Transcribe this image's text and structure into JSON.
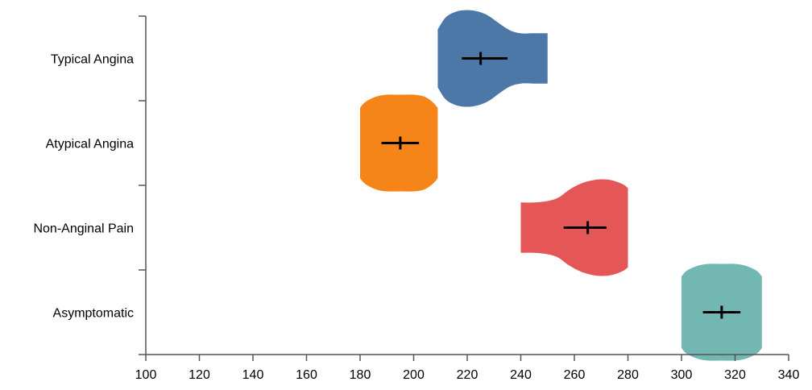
{
  "chart_data": {
    "type": "violin",
    "title": "",
    "xlabel": "",
    "ylabel": "",
    "xlim": [
      100,
      340
    ],
    "xticks": [
      100,
      120,
      140,
      160,
      180,
      200,
      220,
      240,
      260,
      280,
      300,
      320,
      340
    ],
    "grid": false,
    "categories": [
      "Typical Angina",
      "Atypical Angina",
      "Non-Anginal Pain",
      "Asymptomatic"
    ],
    "series": [
      {
        "category": "Typical Angina",
        "color": "#4c78a8",
        "mean": 225,
        "ci": [
          218,
          235
        ],
        "range": [
          209,
          250
        ],
        "profile": [
          [
            209,
            0.6
          ],
          [
            212,
            0.85
          ],
          [
            216,
            0.97
          ],
          [
            220,
            1.0
          ],
          [
            224,
            0.97
          ],
          [
            228,
            0.88
          ],
          [
            232,
            0.72
          ],
          [
            236,
            0.58
          ],
          [
            240,
            0.52
          ],
          [
            245,
            0.52
          ],
          [
            250,
            0.52
          ]
        ]
      },
      {
        "category": "Atypical Angina",
        "color": "#f58518",
        "mean": 195,
        "ci": [
          188,
          202
        ],
        "range": [
          180,
          209
        ],
        "profile": [
          [
            180,
            0.73
          ],
          [
            182,
            0.85
          ],
          [
            186,
            0.96
          ],
          [
            190,
            1.0
          ],
          [
            195,
            1.0
          ],
          [
            200,
            1.0
          ],
          [
            204,
            0.96
          ],
          [
            207,
            0.85
          ],
          [
            209,
            0.73
          ]
        ]
      },
      {
        "category": "Non-Anginal Pain",
        "color": "#e45756",
        "mean": 265,
        "ci": [
          256,
          272
        ],
        "range": [
          240,
          280
        ],
        "profile": [
          [
            240,
            0.52
          ],
          [
            245,
            0.52
          ],
          [
            250,
            0.55
          ],
          [
            254,
            0.62
          ],
          [
            258,
            0.78
          ],
          [
            262,
            0.9
          ],
          [
            266,
            0.97
          ],
          [
            270,
            1.0
          ],
          [
            274,
            0.98
          ],
          [
            278,
            0.9
          ],
          [
            280,
            0.82
          ]
        ]
      },
      {
        "category": "Asymptomatic",
        "color": "#72b7b2",
        "mean": 315,
        "ci": [
          308,
          322
        ],
        "range": [
          300,
          330
        ],
        "profile": [
          [
            300,
            0.74
          ],
          [
            302,
            0.86
          ],
          [
            306,
            0.96
          ],
          [
            310,
            1.0
          ],
          [
            315,
            1.0
          ],
          [
            320,
            1.0
          ],
          [
            324,
            0.96
          ],
          [
            328,
            0.86
          ],
          [
            330,
            0.74
          ]
        ]
      }
    ]
  }
}
